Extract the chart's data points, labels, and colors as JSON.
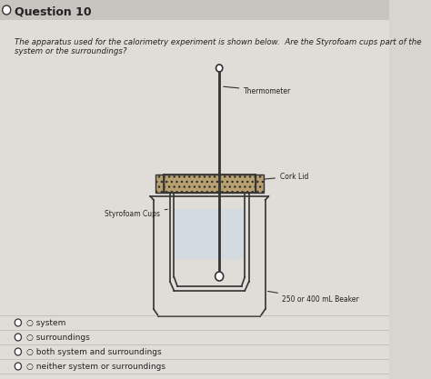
{
  "title": "Question 10",
  "question_text": "The apparatus used for the calorimetry experiment is shown below.  Are the Styrofoam cups part of the system or the surroundings?",
  "choices": [
    "system",
    "surroundings",
    "both system and surroundings",
    "neither system or surroundings"
  ],
  "labels": {
    "thermometer": "Thermometer",
    "cork": "Cork Lid",
    "styrofoam": "Styrofoam Cups",
    "beaker": "250 or 400 mL Beaker"
  },
  "bg_color": "#d8d5d0",
  "panel_color": "#e8e5e0",
  "line_color": "#333333",
  "text_color": "#222222",
  "fig_width": 4.74,
  "fig_height": 4.17,
  "dpi": 100
}
